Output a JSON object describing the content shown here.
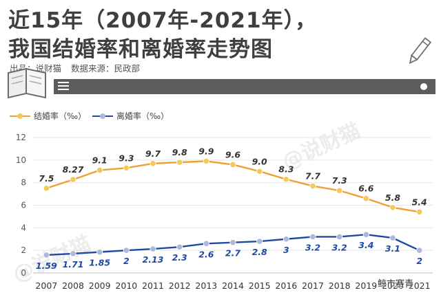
{
  "header": {
    "title_line1": "近15年（2007年-2021年），",
    "title_line2": "我国结婚率和离婚率走势图",
    "source_label": "出品：说财猫",
    "data_source": "数据来源：民政部"
  },
  "watermark": "@说财猫",
  "corner_brand": "鲸市赛青",
  "icons": {
    "toolbar_menu": "menu-icon",
    "toolbar_dot": "dot-icon",
    "book": "book-icon",
    "pencil": "pencil-icon"
  },
  "colors": {
    "marriage": "#f0a030",
    "marriage_marker": "#f4c95a",
    "divorce": "#1f49a3",
    "divorce_marker": "#aab8da",
    "toolbar": "#5c5c5c"
  },
  "chart_data": {
    "type": "line",
    "categories": [
      "2007",
      "2008",
      "2009",
      "2010",
      "2011",
      "2012",
      "2013",
      "2014",
      "2015",
      "2016",
      "2017",
      "2018",
      "2019",
      "2020",
      "2021"
    ],
    "series": [
      {
        "name": "结婚率（‰）",
        "values": [
          7.5,
          8.27,
          9.1,
          9.3,
          9.7,
          9.8,
          9.9,
          9.6,
          9.0,
          8.3,
          7.7,
          7.3,
          6.6,
          5.8,
          5.4
        ],
        "labels": [
          "7.5",
          "8.27",
          "9.1",
          "9.3",
          "9.7",
          "9.8",
          "9.9",
          "9.6",
          "9.0",
          "8.3",
          "7.7",
          "7.3",
          "6.6",
          "5.8",
          "5.4"
        ]
      },
      {
        "name": "离婚率（‰）",
        "values": [
          1.59,
          1.71,
          1.85,
          2,
          2.13,
          2.3,
          2.6,
          2.7,
          2.8,
          3,
          3.2,
          3.2,
          3.4,
          3.1,
          2
        ],
        "labels": [
          "1.59",
          "1.71",
          "1.85",
          "2",
          "2.13",
          "2.3",
          "2.6",
          "2.7",
          "2.8",
          "3",
          "3.2",
          "3.2",
          "3.4",
          "3.1",
          "2"
        ]
      }
    ],
    "yticks": [
      "0",
      "2",
      "4",
      "6",
      "8",
      "10",
      "12"
    ],
    "ylim": [
      0,
      12
    ],
    "grid": true,
    "legend": "top-left"
  }
}
